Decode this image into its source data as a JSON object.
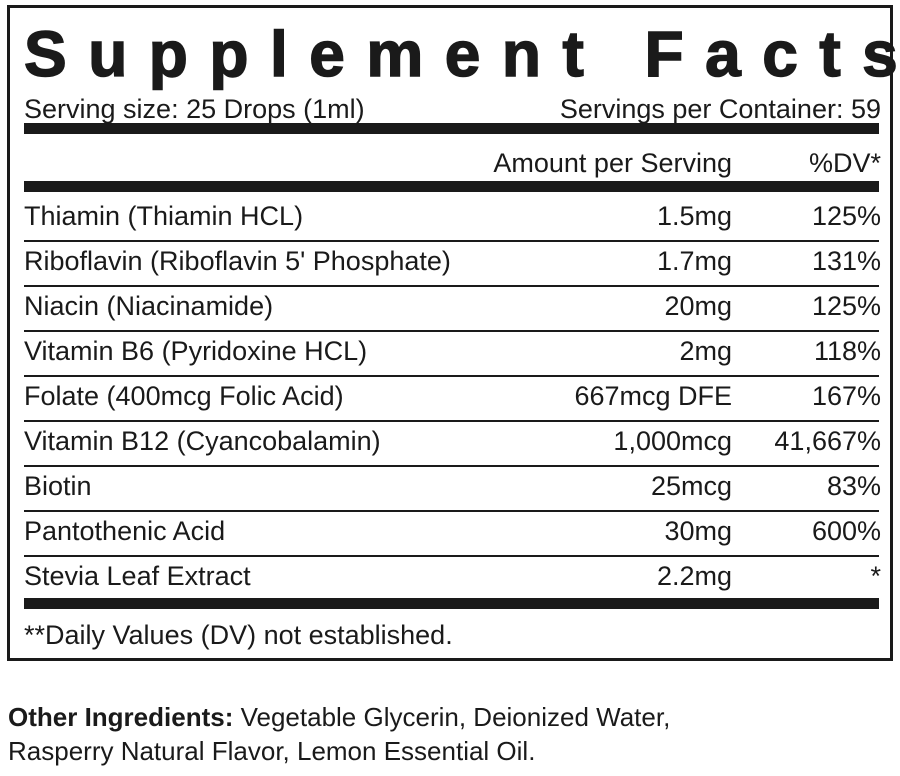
{
  "panel": {
    "title": "Supplement Facts",
    "serving_size": "Serving size: 25 Drops (1ml)",
    "servings_per_container": "Servings per Container: 59",
    "header": {
      "amount": "Amount per Serving",
      "dv": "%DV*"
    },
    "rows": [
      [
        "Thiamin (Thiamin HCL)",
        "1.5mg",
        "125%"
      ],
      [
        "Riboflavin (Riboflavin 5' Phosphate)",
        "1.7mg",
        "131%"
      ],
      [
        "Niacin (Niacinamide)",
        "20mg",
        "125%"
      ],
      [
        "Vitamin B6 (Pyridoxine HCL)",
        "2mg",
        "118%"
      ],
      [
        "Folate (400mcg Folic Acid)",
        "667mcg DFE",
        "167%"
      ],
      [
        "Vitamin B12 (Cyancobalamin)",
        "1,000mcg",
        "41,667%"
      ],
      [
        "Biotin",
        "25mcg",
        "83%"
      ],
      [
        "Pantothenic Acid",
        "30mg",
        "600%"
      ],
      [
        "Stevia Leaf Extract",
        "2.2mg",
        "*"
      ]
    ],
    "footnote": "**Daily Values (DV) not established."
  },
  "other_ingredients": {
    "label": "Other Ingredients:",
    "text_line1": "Vegetable Glycerin, Deionized Water,",
    "text_line2": "Rasperry Natural Flavor, Lemon Essential Oil."
  }
}
